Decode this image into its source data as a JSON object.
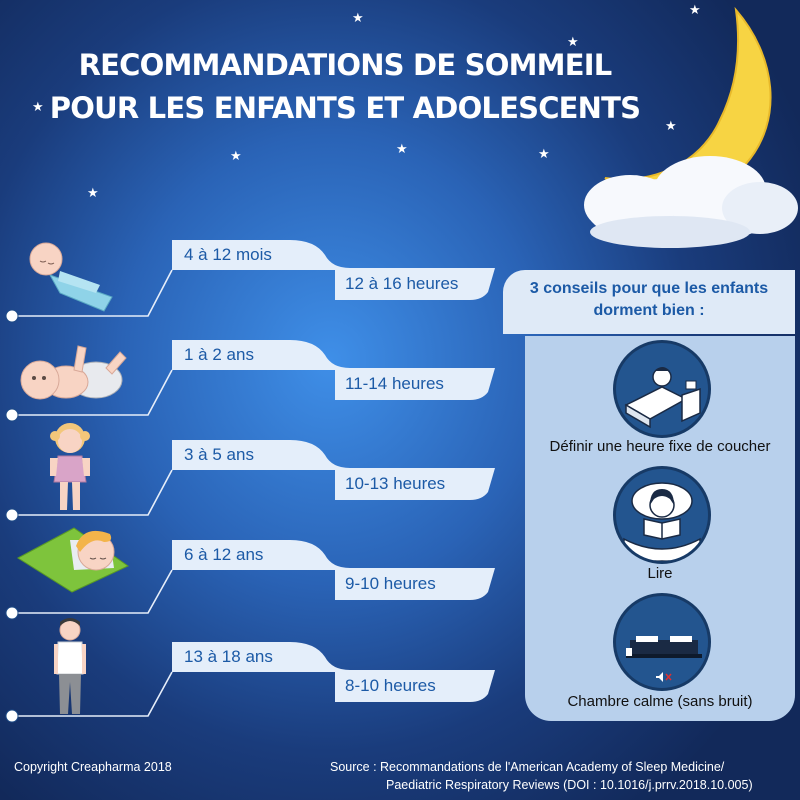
{
  "title": {
    "line1": "RECOMMANDATIONS DE SOMMEIL",
    "line2": "POUR LES ENFANTS ET ADOLESCENTS"
  },
  "age_groups": [
    {
      "age": "4 à 12 mois",
      "hours": "12 à 16 heures",
      "icon": "newborn-swaddled-icon"
    },
    {
      "age": "1 à 2 ans",
      "hours": "11-14 heures",
      "icon": "baby-crawling-icon"
    },
    {
      "age": "3 à 5 ans",
      "hours": "10-13 heures",
      "icon": "toddler-girl-icon"
    },
    {
      "age": "6 à 12 ans",
      "hours": "9-10 heures",
      "icon": "sleeping-child-icon"
    },
    {
      "age": "13 à 18 ans",
      "hours": "8-10 heures",
      "icon": "teenager-icon"
    }
  ],
  "tips": {
    "title_line1": "3 conseils pour que les enfants",
    "title_line2": "dorment bien :",
    "items": [
      {
        "label": "Définir une heure fixe de coucher",
        "icon": "bedtime-clock-icon"
      },
      {
        "label": "Lire",
        "icon": "reading-in-bed-icon"
      },
      {
        "label": "Chambre calme (sans bruit)",
        "icon": "quiet-bedroom-icon"
      }
    ]
  },
  "footer": {
    "copyright": "Copyright Creapharma 2018",
    "source_line1": "Source : Recommandations de l'American Academy of Sleep Medicine/",
    "source_line2": "Paediatric Respiratory Reviews (DOI : 10.1016/j.prrv.2018.10.005)"
  },
  "colors": {
    "background_center": "#3f8fe8",
    "background_edge": "#12295a",
    "accent_text": "#1c5aa6",
    "tab_fill": "#e4eefa",
    "tips_panel": "#b8d0ec",
    "moon": "#f7d443"
  }
}
